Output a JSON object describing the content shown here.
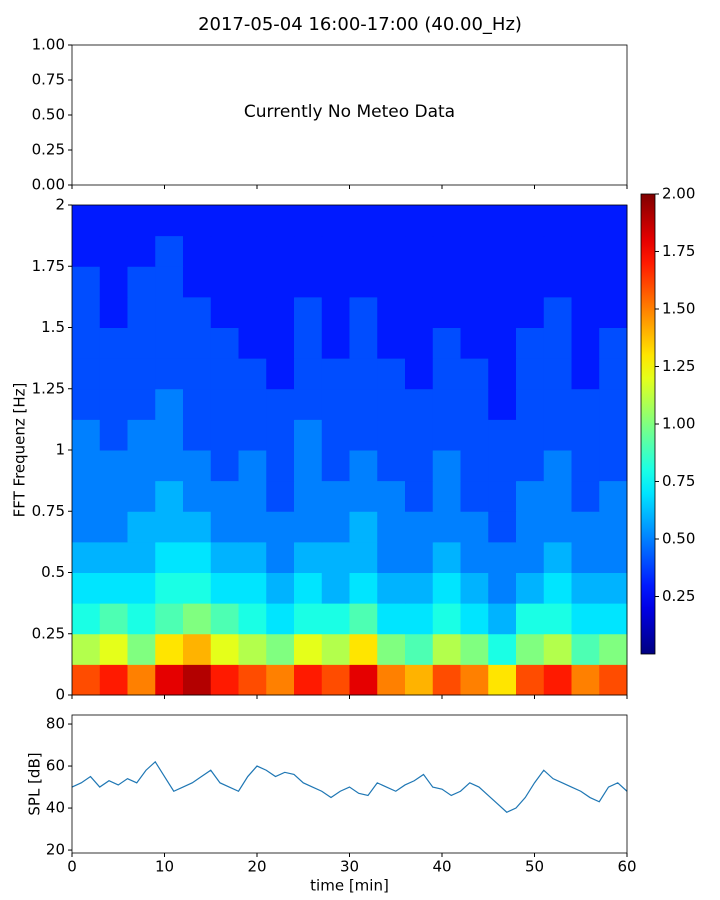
{
  "chart_data": [
    {
      "type": "empty",
      "title": "2017-05-04 16:00-17:00 (40.00_Hz)",
      "annotation": "Currently No Meteo Data",
      "xlim": [
        0,
        60
      ],
      "xticks": [
        0,
        10,
        20,
        30,
        40,
        50,
        60
      ],
      "xtick_labels": false,
      "ylim": [
        0,
        1
      ],
      "yticks": [
        {
          "value": 0,
          "label": "0.00"
        },
        0.25,
        {
          "value": 0.5,
          "label": "0.50"
        },
        0.75,
        {
          "value": 1,
          "label": "1.00"
        }
      ]
    },
    {
      "type": "heatmap",
      "ylabel": "FFT Frequenz [Hz]",
      "xlim": [
        0,
        60
      ],
      "xticks": [
        0,
        10,
        20,
        30,
        40,
        50,
        60
      ],
      "xtick_labels": false,
      "ylim": [
        0,
        2
      ],
      "yticks": [
        0,
        0.25,
        0.5,
        0.75,
        1,
        1.25,
        1.5,
        1.75,
        2
      ],
      "colormap": "jet",
      "clim": [
        0,
        2
      ],
      "cticks": [
        0.25,
        {
          "value": 0.5,
          "label": "0.50"
        },
        0.75,
        {
          "value": 1,
          "label": "1.00"
        },
        1.25,
        {
          "value": 1.5,
          "label": "1.50"
        },
        1.75,
        {
          "value": 2,
          "label": "2.00"
        }
      ],
      "values": [
        [
          1.6,
          1.7,
          1.5,
          1.8,
          1.9,
          1.7,
          1.6,
          1.5,
          1.7,
          1.6,
          1.8,
          1.5,
          1.4,
          1.6,
          1.5,
          1.3,
          1.6,
          1.7,
          1.5,
          1.6
        ],
        [
          1.1,
          1.2,
          1.0,
          1.3,
          1.4,
          1.2,
          1.1,
          1.0,
          1.2,
          1.1,
          1.3,
          1.0,
          0.9,
          1.1,
          1.0,
          0.8,
          1.0,
          1.1,
          0.9,
          1.0
        ],
        [
          0.8,
          0.9,
          0.8,
          0.9,
          1.0,
          0.9,
          0.8,
          0.7,
          0.8,
          0.8,
          0.9,
          0.7,
          0.7,
          0.8,
          0.7,
          0.6,
          0.8,
          0.8,
          0.7,
          0.7
        ],
        [
          0.7,
          0.7,
          0.7,
          0.8,
          0.8,
          0.7,
          0.7,
          0.6,
          0.7,
          0.6,
          0.7,
          0.6,
          0.6,
          0.7,
          0.6,
          0.5,
          0.6,
          0.7,
          0.6,
          0.6
        ],
        [
          0.6,
          0.6,
          0.6,
          0.7,
          0.7,
          0.6,
          0.6,
          0.5,
          0.6,
          0.6,
          0.6,
          0.5,
          0.5,
          0.6,
          0.5,
          0.5,
          0.5,
          0.6,
          0.5,
          0.5
        ],
        [
          0.5,
          0.5,
          0.6,
          0.6,
          0.6,
          0.5,
          0.5,
          0.5,
          0.5,
          0.5,
          0.6,
          0.5,
          0.5,
          0.5,
          0.5,
          0.4,
          0.5,
          0.5,
          0.5,
          0.5
        ],
        [
          0.5,
          0.5,
          0.5,
          0.6,
          0.5,
          0.5,
          0.5,
          0.4,
          0.5,
          0.5,
          0.5,
          0.5,
          0.4,
          0.5,
          0.4,
          0.4,
          0.5,
          0.5,
          0.4,
          0.5
        ],
        [
          0.5,
          0.5,
          0.5,
          0.5,
          0.5,
          0.4,
          0.5,
          0.4,
          0.5,
          0.4,
          0.5,
          0.4,
          0.4,
          0.5,
          0.4,
          0.4,
          0.4,
          0.5,
          0.4,
          0.4
        ],
        [
          0.5,
          0.4,
          0.5,
          0.5,
          0.4,
          0.4,
          0.4,
          0.4,
          0.5,
          0.4,
          0.4,
          0.4,
          0.4,
          0.4,
          0.4,
          0.4,
          0.4,
          0.4,
          0.4,
          0.4
        ],
        [
          0.4,
          0.4,
          0.4,
          0.5,
          0.4,
          0.4,
          0.4,
          0.4,
          0.4,
          0.4,
          0.4,
          0.4,
          0.4,
          0.4,
          0.4,
          0.3,
          0.4,
          0.4,
          0.4,
          0.4
        ],
        [
          0.4,
          0.4,
          0.4,
          0.4,
          0.4,
          0.4,
          0.4,
          0.3,
          0.4,
          0.4,
          0.4,
          0.4,
          0.3,
          0.4,
          0.4,
          0.3,
          0.4,
          0.4,
          0.3,
          0.4
        ],
        [
          0.4,
          0.4,
          0.4,
          0.4,
          0.4,
          0.4,
          0.3,
          0.3,
          0.4,
          0.3,
          0.4,
          0.3,
          0.3,
          0.4,
          0.3,
          0.3,
          0.4,
          0.4,
          0.3,
          0.4
        ],
        [
          0.4,
          0.3,
          0.4,
          0.4,
          0.4,
          0.3,
          0.3,
          0.3,
          0.4,
          0.3,
          0.4,
          0.3,
          0.3,
          0.3,
          0.3,
          0.3,
          0.3,
          0.4,
          0.3,
          0.3
        ],
        [
          0.4,
          0.3,
          0.4,
          0.4,
          0.3,
          0.3,
          0.3,
          0.3,
          0.3,
          0.3,
          0.3,
          0.3,
          0.3,
          0.3,
          0.3,
          0.3,
          0.3,
          0.3,
          0.3,
          0.3
        ],
        [
          0.3,
          0.3,
          0.3,
          0.4,
          0.3,
          0.3,
          0.3,
          0.3,
          0.3,
          0.3,
          0.3,
          0.3,
          0.3,
          0.3,
          0.3,
          0.3,
          0.3,
          0.3,
          0.3,
          0.3
        ],
        [
          0.3,
          0.3,
          0.3,
          0.3,
          0.3,
          0.3,
          0.3,
          0.3,
          0.3,
          0.3,
          0.3,
          0.3,
          0.3,
          0.3,
          0.3,
          0.3,
          0.3,
          0.3,
          0.3,
          0.3
        ]
      ]
    },
    {
      "type": "line",
      "xlabel": "time [min]",
      "ylabel": "SPL [dB]",
      "xlim": [
        0,
        60
      ],
      "xticks": [
        0,
        10,
        20,
        30,
        40,
        50,
        60
      ],
      "xtick_labels": true,
      "ylim": [
        18.6,
        84.3
      ],
      "yticks": [
        20,
        40,
        60,
        80
      ],
      "x": [
        0,
        1,
        2,
        3,
        4,
        5,
        6,
        7,
        8,
        9,
        10,
        11,
        12,
        13,
        14,
        15,
        16,
        17,
        18,
        19,
        20,
        21,
        22,
        23,
        24,
        25,
        26,
        27,
        28,
        29,
        30,
        31,
        32,
        33,
        34,
        35,
        36,
        37,
        38,
        39,
        40,
        41,
        42,
        43,
        44,
        45,
        46,
        47,
        48,
        49,
        50,
        51,
        52,
        53,
        54,
        55,
        56,
        57,
        58,
        59,
        60
      ],
      "series": [
        {
          "color": "#1f77b4",
          "values": [
            50,
            52,
            55,
            50,
            53,
            51,
            54,
            52,
            58,
            62,
            55,
            48,
            50,
            52,
            55,
            58,
            52,
            50,
            48,
            55,
            60,
            58,
            55,
            57,
            56,
            52,
            50,
            48,
            45,
            48,
            50,
            47,
            46,
            52,
            50,
            48,
            51,
            53,
            56,
            50,
            49,
            46,
            48,
            52,
            50,
            46,
            42,
            38,
            40,
            45,
            52,
            58,
            54,
            52,
            50,
            48,
            45,
            43,
            50,
            52,
            48
          ]
        }
      ]
    }
  ]
}
